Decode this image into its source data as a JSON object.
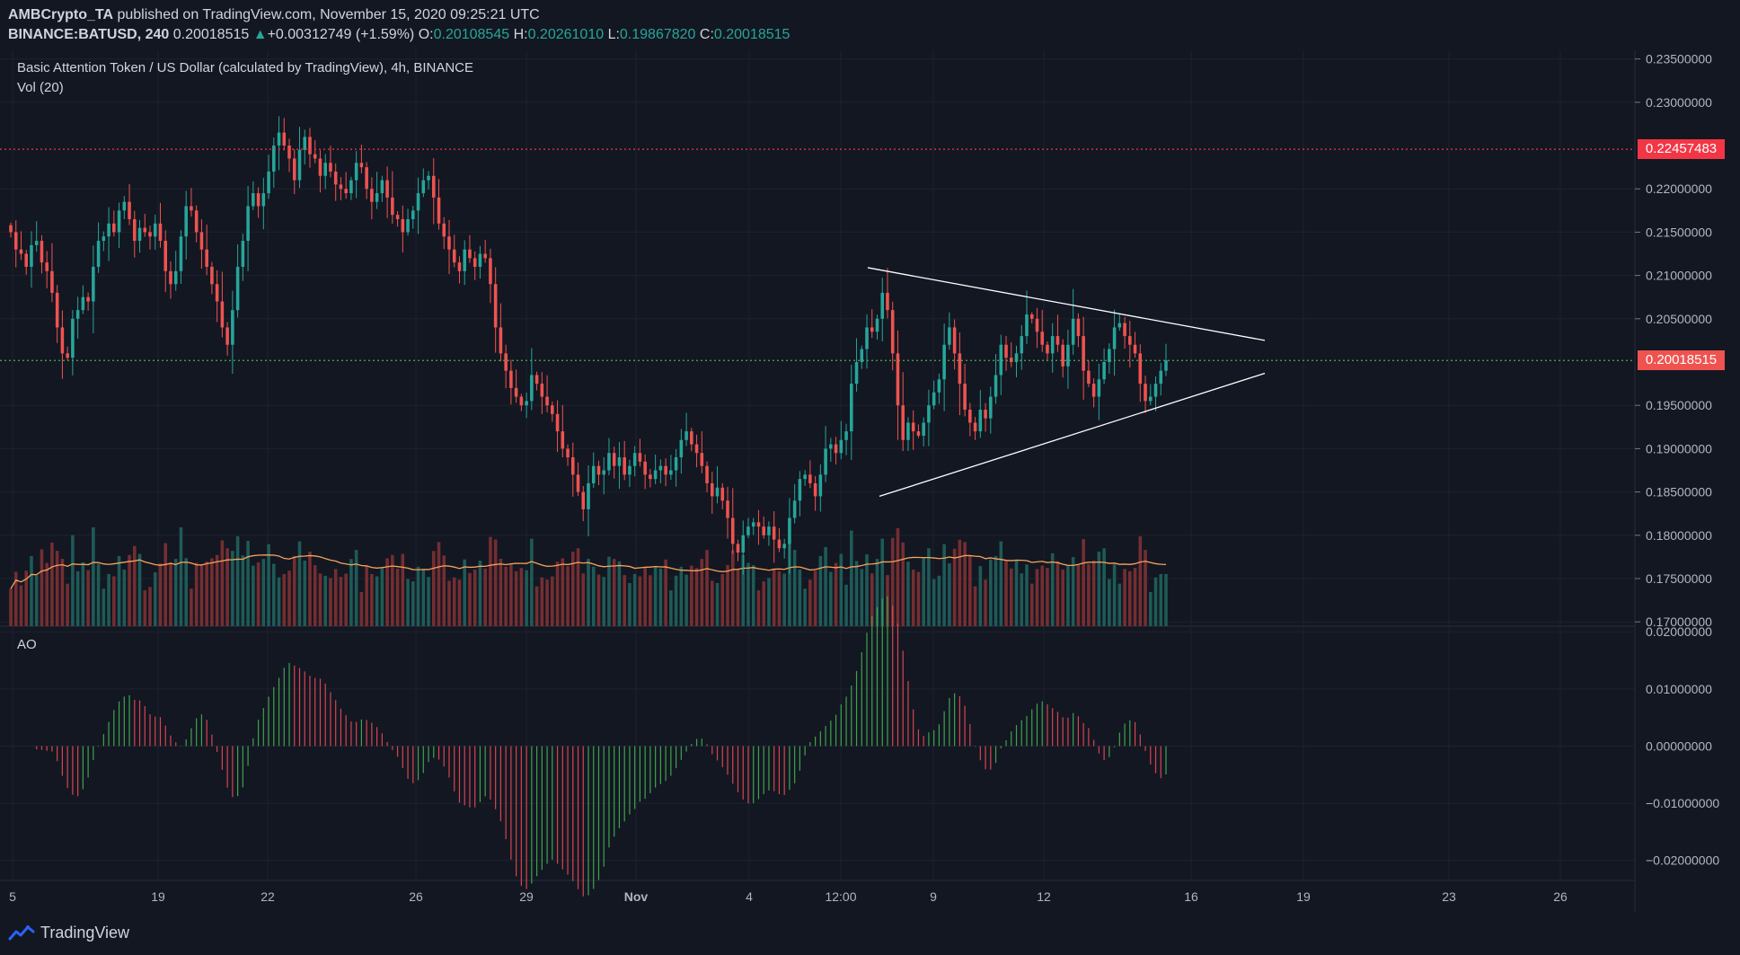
{
  "header": {
    "author": "AMBCrypto_TA",
    "published_text": "published on TradingView.com, November 15, 2020 09:25:21 UTC",
    "symbol": "BINANCE:BATUSD, 240",
    "last_price": "0.20018515",
    "change_arrow": "▲",
    "change": "+0.00312749 (+1.59%)",
    "o_label": "O:",
    "o_value": "0.20108545",
    "h_label": "H:",
    "h_value": "0.20261010",
    "l_label": "L:",
    "l_value": "0.19867820",
    "c_label": "C:",
    "c_value": "0.20018515"
  },
  "legend": {
    "title": "Basic Attention Token / US Dollar (calculated by TradingView), 4h, BINANCE",
    "volume": "Vol (20)",
    "ao": "AO"
  },
  "price_tags": {
    "resistance": "0.22457483",
    "current": "0.20018515"
  },
  "footer": {
    "brand": "TradingView",
    "logo_icon": "tradingview-logo-icon"
  },
  "colors": {
    "background": "#131722",
    "up": "#26a69a",
    "down": "#ef5350",
    "resistance_line": "#f23645",
    "current_line": "#4caf50",
    "ma_line": "#f7a35c",
    "triangle": "#ffffff"
  },
  "chart_data": [
    {
      "type": "candlestick",
      "title": "Basic Attention Token / US Dollar (calculated by TradingView), 4h, BINANCE",
      "y_ticks": [
        "0.23500000",
        "0.23000000",
        "0.22000000",
        "0.21500000",
        "0.21000000",
        "0.20500000",
        "0.19500000",
        "0.19000000",
        "0.18500000",
        "0.18000000",
        "0.17500000",
        "0.17000000"
      ],
      "y_range": [
        0.1695,
        0.236
      ],
      "x_ticks": [
        "5",
        "19",
        "22",
        "26",
        "29",
        "Nov",
        "4",
        "12:00",
        "9",
        "12",
        "16",
        "19",
        "23",
        "26"
      ],
      "horizontal_lines": [
        {
          "value": 0.22457483,
          "style": "dotted",
          "color": "#f23645"
        },
        {
          "value": 0.20018515,
          "style": "dotted",
          "color": "#4caf50"
        }
      ],
      "triangle": {
        "upper": [
          [
            0.2109,
            0.2025
          ]
        ],
        "lower": [
          [
            0.1845,
            0.1987
          ]
        ]
      },
      "closes": [
        0.215,
        0.213,
        0.2125,
        0.211,
        0.2135,
        0.214,
        0.2115,
        0.2105,
        0.208,
        0.204,
        0.201,
        0.2005,
        0.205,
        0.206,
        0.2075,
        0.207,
        0.211,
        0.214,
        0.2145,
        0.216,
        0.215,
        0.2175,
        0.2185,
        0.2165,
        0.214,
        0.2155,
        0.215,
        0.2145,
        0.216,
        0.214,
        0.2105,
        0.209,
        0.2105,
        0.2145,
        0.218,
        0.2175,
        0.215,
        0.213,
        0.211,
        0.209,
        0.207,
        0.204,
        0.202,
        0.206,
        0.211,
        0.214,
        0.218,
        0.2195,
        0.218,
        0.2195,
        0.222,
        0.225,
        0.2265,
        0.225,
        0.2235,
        0.221,
        0.2245,
        0.226,
        0.224,
        0.2235,
        0.2215,
        0.223,
        0.222,
        0.2205,
        0.22,
        0.2195,
        0.221,
        0.223,
        0.2225,
        0.22,
        0.2185,
        0.2195,
        0.221,
        0.219,
        0.217,
        0.2165,
        0.215,
        0.2165,
        0.2175,
        0.2195,
        0.221,
        0.2215,
        0.219,
        0.216,
        0.2145,
        0.213,
        0.2115,
        0.2105,
        0.213,
        0.212,
        0.211,
        0.2125,
        0.212,
        0.209,
        0.204,
        0.201,
        0.199,
        0.197,
        0.196,
        0.195,
        0.1955,
        0.1985,
        0.1975,
        0.196,
        0.195,
        0.194,
        0.192,
        0.19,
        0.189,
        0.187,
        0.185,
        0.183,
        0.186,
        0.188,
        0.187,
        0.1875,
        0.1895,
        0.188,
        0.189,
        0.187,
        0.188,
        0.1895,
        0.1885,
        0.187,
        0.1865,
        0.1875,
        0.188,
        0.187,
        0.1875,
        0.189,
        0.191,
        0.192,
        0.1905,
        0.1895,
        0.188,
        0.186,
        0.1845,
        0.1855,
        0.184,
        0.182,
        0.179,
        0.178,
        0.18,
        0.181,
        0.1815,
        0.181,
        0.18,
        0.181,
        0.1795,
        0.1785,
        0.179,
        0.182,
        0.184,
        0.1865,
        0.187,
        0.186,
        0.1845,
        0.187,
        0.19,
        0.1905,
        0.1895,
        0.191,
        0.192,
        0.1975,
        0.2,
        0.2015,
        0.204,
        0.2035,
        0.205,
        0.208,
        0.206,
        0.201,
        0.195,
        0.191,
        0.193,
        0.192,
        0.1915,
        0.193,
        0.195,
        0.1965,
        0.198,
        0.202,
        0.204,
        0.201,
        0.1975,
        0.1945,
        0.193,
        0.192,
        0.1945,
        0.1935,
        0.196,
        0.1985,
        0.202,
        0.2005,
        0.2,
        0.201,
        0.203,
        0.2055,
        0.205,
        0.2035,
        0.202,
        0.201,
        0.203,
        0.202,
        0.1995,
        0.202,
        0.205,
        0.203,
        0.199,
        0.1975,
        0.196,
        0.198,
        0.2,
        0.2015,
        0.204,
        0.2045,
        0.203,
        0.202,
        0.201,
        0.1975,
        0.1955,
        0.196,
        0.1975,
        0.199,
        0.2002
      ]
    },
    {
      "type": "bar",
      "title": "Vol (20)",
      "note": "volume histogram with 20-period moving average"
    },
    {
      "type": "bar",
      "title": "AO",
      "y_ticks": [
        "0.02000000",
        "0.01000000",
        "0.00000000",
        "−0.01000000",
        "−0.02000000"
      ],
      "y_range": [
        -0.0235,
        0.0205
      ]
    }
  ]
}
